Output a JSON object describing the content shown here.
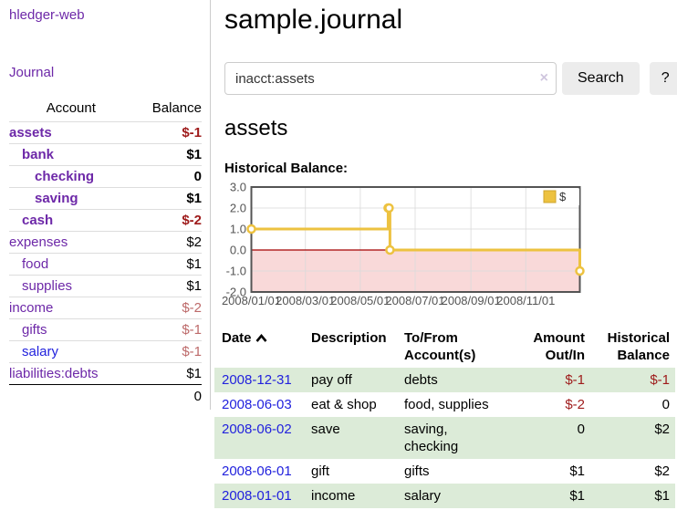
{
  "app_title": "hledger-web",
  "sidebar": {
    "journal_link": "Journal",
    "table": {
      "col_account": "Account",
      "col_balance": "Balance",
      "rows": [
        {
          "name": "assets",
          "indent": 0,
          "bold": true,
          "balance": "$-1",
          "neg": "strong"
        },
        {
          "name": "bank",
          "indent": 1,
          "bold": true,
          "balance": "$1",
          "neg": "none"
        },
        {
          "name": "checking",
          "indent": 2,
          "bold": true,
          "balance": "0",
          "neg": "none"
        },
        {
          "name": "saving",
          "indent": 2,
          "bold": true,
          "balance": "$1",
          "neg": "none"
        },
        {
          "name": "cash",
          "indent": 1,
          "bold": true,
          "balance": "$-2",
          "neg": "strong"
        },
        {
          "name": "expenses",
          "indent": 0,
          "bold": false,
          "balance": "$2",
          "neg": "none"
        },
        {
          "name": "food",
          "indent": 1,
          "bold": false,
          "balance": "$1",
          "neg": "none"
        },
        {
          "name": "supplies",
          "indent": 1,
          "bold": false,
          "balance": "$1",
          "neg": "none"
        },
        {
          "name": "income",
          "indent": 0,
          "bold": false,
          "balance": "$-2",
          "neg": "soft"
        },
        {
          "name": "gifts",
          "indent": 1,
          "bold": false,
          "balance": "$-1",
          "neg": "soft"
        },
        {
          "name": "salary",
          "indent": 1,
          "bold": false,
          "balance": "$-1",
          "neg": "soft",
          "link_color": "blue"
        },
        {
          "name": "liabilities:debts",
          "indent": 0,
          "bold": false,
          "balance": "$1",
          "neg": "none"
        }
      ],
      "total": "0"
    }
  },
  "main": {
    "title": "sample.journal",
    "search": {
      "value": "inacct:assets",
      "clear_icon": "×",
      "search_button": "Search",
      "help_button": "?"
    },
    "account_heading": "assets",
    "chart_heading": "Historical Balance:"
  },
  "icons": {
    "sort_date_column": "chevron-up",
    "clear_search": "x-clear",
    "help": "question-mark"
  },
  "chart_data": {
    "type": "line",
    "step": true,
    "title": "Historical Balance",
    "series": [
      {
        "name": "$",
        "color": "#edc240",
        "points": [
          [
            "2008-01-01",
            1.0
          ],
          [
            "2008-06-01",
            2.0
          ],
          [
            "2008-06-02",
            2.0
          ],
          [
            "2008-06-03",
            0.0
          ],
          [
            "2008-12-31",
            -1.0
          ]
        ]
      }
    ],
    "x_range": [
      "2008-01-01",
      "2008-12-31"
    ],
    "y_range": [
      -2.0,
      3.0
    ],
    "y_ticks": [
      "3.0",
      "2.0",
      "1.0",
      "0.0",
      "-1.0",
      "-2.0"
    ],
    "x_ticks": [
      "2008/01/01",
      "2008/03/01",
      "2008/05/01",
      "2008/07/01",
      "2008/09/01",
      "2008/11/01"
    ],
    "grid": true,
    "legend": {
      "position": "top-right",
      "label": "$"
    },
    "negative_region_fill": "#f9d9d9",
    "zero_line_color": "#a40000",
    "border_color": "#545454"
  },
  "transactions": {
    "headers": {
      "date": "Date",
      "description": "Description",
      "account": "To/From\nAccount(s)",
      "amount": "Amount\nOut/In",
      "balance": "Historical\nBalance"
    },
    "rows": [
      {
        "date": "2008-12-31",
        "description": "pay off",
        "account": "debts",
        "amount": "$-1",
        "amount_neg": true,
        "balance": "$-1",
        "balance_neg": true
      },
      {
        "date": "2008-06-03",
        "description": "eat & shop",
        "account": "food, supplies",
        "amount": "$-2",
        "amount_neg": true,
        "balance": "0",
        "balance_neg": false
      },
      {
        "date": "2008-06-02",
        "description": "save",
        "account": "saving,\nchecking",
        "amount": "0",
        "amount_neg": false,
        "balance": "$2",
        "balance_neg": false
      },
      {
        "date": "2008-06-01",
        "description": "gift",
        "account": "gifts",
        "amount": "$1",
        "amount_neg": false,
        "balance": "$2",
        "balance_neg": false
      },
      {
        "date": "2008-01-01",
        "description": "income",
        "account": "salary",
        "amount": "$1",
        "amount_neg": false,
        "balance": "$1",
        "balance_neg": false
      }
    ]
  }
}
